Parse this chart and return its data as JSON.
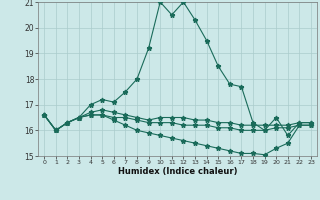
{
  "title": "",
  "xlabel": "Humidex (Indice chaleur)",
  "ylabel": "",
  "xlim": [
    -0.5,
    23.5
  ],
  "ylim": [
    15,
    21
  ],
  "yticks": [
    15,
    16,
    17,
    18,
    19,
    20,
    21
  ],
  "xticks": [
    0,
    1,
    2,
    3,
    4,
    5,
    6,
    7,
    8,
    9,
    10,
    11,
    12,
    13,
    14,
    15,
    16,
    17,
    18,
    19,
    20,
    21,
    22,
    23
  ],
  "bg_color": "#cce8e8",
  "grid_color": "#aacccc",
  "line_color": "#1a6b5a",
  "line1_x": [
    0,
    1,
    2,
    3,
    4,
    5,
    6,
    7,
    8,
    9,
    10,
    11,
    12,
    13,
    14,
    15,
    16,
    17,
    18,
    19,
    20,
    21,
    22,
    23
  ],
  "line1_y": [
    16.6,
    16.0,
    16.3,
    16.5,
    17.0,
    17.2,
    17.1,
    17.5,
    18.0,
    19.2,
    21.0,
    20.5,
    21.0,
    20.3,
    19.5,
    18.5,
    17.8,
    17.7,
    16.3,
    16.0,
    16.5,
    15.8,
    16.3,
    16.3
  ],
  "line2_x": [
    0,
    1,
    2,
    3,
    4,
    5,
    6,
    7,
    8,
    9,
    10,
    11,
    12,
    13,
    14,
    15,
    16,
    17,
    18,
    19,
    20,
    21,
    22,
    23
  ],
  "line2_y": [
    16.6,
    16.0,
    16.3,
    16.5,
    16.7,
    16.8,
    16.7,
    16.6,
    16.5,
    16.4,
    16.5,
    16.5,
    16.5,
    16.4,
    16.4,
    16.3,
    16.3,
    16.2,
    16.2,
    16.2,
    16.2,
    16.2,
    16.3,
    16.3
  ],
  "line3_x": [
    0,
    1,
    2,
    3,
    4,
    5,
    6,
    7,
    8,
    9,
    10,
    11,
    12,
    13,
    14,
    15,
    16,
    17,
    18,
    19,
    20,
    21,
    22,
    23
  ],
  "line3_y": [
    16.6,
    16.0,
    16.3,
    16.5,
    16.6,
    16.6,
    16.5,
    16.5,
    16.4,
    16.3,
    16.3,
    16.3,
    16.2,
    16.2,
    16.2,
    16.1,
    16.1,
    16.0,
    16.0,
    16.0,
    16.1,
    16.1,
    16.2,
    16.2
  ],
  "line4_x": [
    0,
    1,
    2,
    3,
    4,
    5,
    6,
    7,
    8,
    9,
    10,
    11,
    12,
    13,
    14,
    15,
    16,
    17,
    18,
    19,
    20,
    21,
    22,
    23
  ],
  "line4_y": [
    16.6,
    16.0,
    16.3,
    16.5,
    16.6,
    16.6,
    16.4,
    16.2,
    16.0,
    15.9,
    15.8,
    15.7,
    15.6,
    15.5,
    15.4,
    15.3,
    15.2,
    15.1,
    15.1,
    15.05,
    15.3,
    15.5,
    16.2,
    16.2
  ]
}
